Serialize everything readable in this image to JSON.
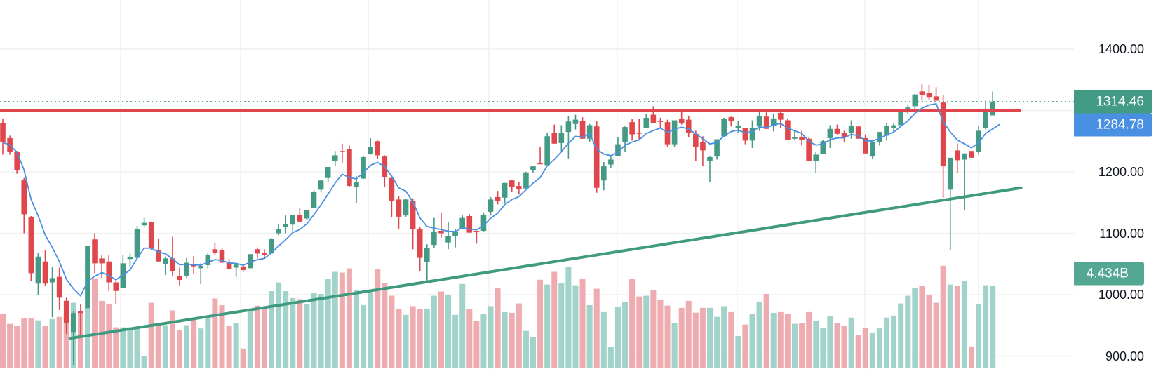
{
  "chart_data": {
    "type": "candlestick",
    "title": "",
    "price_axis": {
      "ylim": [
        880,
        1440
      ],
      "gridlines": [
        900,
        1000,
        1100,
        1200,
        1300,
        1400
      ],
      "tick_labels": [
        {
          "value": 1400,
          "label": "1400.00"
        },
        {
          "value": 1200,
          "label": "1200.00"
        },
        {
          "value": 1100,
          "label": "1100.00"
        },
        {
          "value": 1000,
          "label": "1000.00"
        },
        {
          "value": 900,
          "label": "900.00"
        }
      ]
    },
    "columns": [
      "open",
      "high",
      "low",
      "close",
      "volume_billions"
    ],
    "candles": [
      [
        1280,
        1286,
        1228,
        1248,
        2.92
      ],
      [
        1255,
        1259,
        1228,
        1233,
        2.38
      ],
      [
        1232,
        1234,
        1197,
        1203,
        2.25
      ],
      [
        1187,
        1190,
        1100,
        1131,
        2.67
      ],
      [
        1126,
        1128,
        1022,
        1035,
        2.67
      ],
      [
        1018,
        1068,
        999,
        1062,
        2.57
      ],
      [
        1054,
        1072,
        1014,
        1018,
        2.25
      ],
      [
        1020,
        1045,
        963,
        1027,
        2.64
      ],
      [
        1029,
        1044,
        975,
        995,
        2.76
      ],
      [
        990,
        995,
        936,
        954,
        2.93
      ],
      [
        939,
        973,
        885,
        970,
        3.53
      ],
      [
        973,
        985,
        933,
        970,
        3.02
      ],
      [
        978,
        1080,
        978,
        1080,
        3.25
      ],
      [
        1090,
        1100,
        1035,
        1051,
        4.86
      ],
      [
        1059,
        1065,
        1027,
        1051,
        3.63
      ],
      [
        1054,
        1065,
        1006,
        1020,
        3.44
      ],
      [
        1020,
        1022,
        984,
        1006,
        2.19
      ],
      [
        1011,
        1065,
        1011,
        1051,
        2.19
      ],
      [
        1058,
        1067,
        1046,
        1061,
        2.19
      ],
      [
        1060,
        1112,
        1058,
        1107,
        2.19
      ],
      [
        1113,
        1125,
        1111,
        1117,
        0.62
      ],
      [
        1118,
        1119,
        1072,
        1076,
        3.53
      ],
      [
        1072,
        1091,
        1054,
        1054,
        2.25
      ],
      [
        1050,
        1062,
        1032,
        1059,
        2.31
      ],
      [
        1059,
        1094,
        1031,
        1038,
        3.11
      ],
      [
        1030,
        1044,
        1014,
        1024,
        2.06
      ],
      [
        1031,
        1060,
        1027,
        1052,
        2.31
      ],
      [
        1048,
        1063,
        1034,
        1046,
        2.6
      ],
      [
        1043,
        1051,
        1017,
        1047,
        2.13
      ],
      [
        1048,
        1068,
        1043,
        1064,
        2.67
      ],
      [
        1074,
        1084,
        1065,
        1068,
        3.76
      ],
      [
        1073,
        1075,
        1052,
        1052,
        3.4
      ],
      [
        1052,
        1058,
        1042,
        1042,
        2.27
      ],
      [
        1044,
        1049,
        1029,
        1049,
        2.42
      ],
      [
        1046,
        1047,
        1037,
        1040,
        1.04
      ],
      [
        1043,
        1066,
        1043,
        1066,
        3.08
      ],
      [
        1074,
        1077,
        1059,
        1067,
        3.37
      ],
      [
        1068,
        1074,
        1058,
        1064,
        3.21
      ],
      [
        1067,
        1092,
        1067,
        1091,
        4.16
      ],
      [
        1100,
        1115,
        1097,
        1107,
        4.63
      ],
      [
        1110,
        1129,
        1100,
        1115,
        4.16
      ],
      [
        1114,
        1130,
        1103,
        1130,
        3.78
      ],
      [
        1130,
        1141,
        1119,
        1119,
        3.72
      ],
      [
        1124,
        1138,
        1122,
        1138,
        3.46
      ],
      [
        1141,
        1170,
        1141,
        1168,
        4.06
      ],
      [
        1171,
        1186,
        1168,
        1186,
        4.01
      ],
      [
        1190,
        1208,
        1184,
        1208,
        4.83
      ],
      [
        1218,
        1234,
        1210,
        1227,
        5.21
      ],
      [
        1234,
        1246,
        1214,
        1232,
        5.17
      ],
      [
        1237,
        1243,
        1175,
        1177,
        5.4
      ],
      [
        1176,
        1193,
        1149,
        1183,
        4.2
      ],
      [
        1189,
        1226,
        1189,
        1224,
        3.4
      ],
      [
        1229,
        1255,
        1228,
        1241,
        4.1
      ],
      [
        1250,
        1251,
        1221,
        1227,
        5.35
      ],
      [
        1225,
        1227,
        1175,
        1192,
        4.58
      ],
      [
        1190,
        1195,
        1126,
        1153,
        3.91
      ],
      [
        1155,
        1161,
        1107,
        1127,
        3.17
      ],
      [
        1129,
        1156,
        1127,
        1155,
        2.87
      ],
      [
        1153,
        1157,
        1074,
        1107,
        3.34
      ],
      [
        1107,
        1110,
        1038,
        1060,
        3.17
      ],
      [
        1053,
        1082,
        1022,
        1076,
        3.21
      ],
      [
        1081,
        1125,
        1076,
        1102,
        3.91
      ],
      [
        1104,
        1133,
        1093,
        1100,
        4.14
      ],
      [
        1085,
        1118,
        1074,
        1096,
        3.97
      ],
      [
        1095,
        1107,
        1077,
        1102,
        2.87
      ],
      [
        1107,
        1129,
        1107,
        1125,
        4.55
      ],
      [
        1128,
        1131,
        1101,
        1101,
        3.17
      ],
      [
        1104,
        1104,
        1083,
        1102,
        2.53
      ],
      [
        1104,
        1134,
        1103,
        1130,
        2.92
      ],
      [
        1135,
        1159,
        1129,
        1155,
        3.34
      ],
      [
        1159,
        1169,
        1147,
        1153,
        4.32
      ],
      [
        1158,
        1182,
        1149,
        1182,
        3.02
      ],
      [
        1186,
        1187,
        1168,
        1175,
        2.98
      ],
      [
        1177,
        1183,
        1163,
        1172,
        3.49
      ],
      [
        1173,
        1200,
        1173,
        1199,
        2.0
      ],
      [
        1203,
        1210,
        1199,
        1209,
        1.66
      ],
      [
        1214,
        1241,
        1213,
        1213,
        4.78
      ],
      [
        1211,
        1264,
        1211,
        1258,
        4.52
      ],
      [
        1264,
        1277,
        1246,
        1246,
        5.21
      ],
      [
        1247,
        1276,
        1233,
        1264,
        4.58
      ],
      [
        1265,
        1291,
        1222,
        1282,
        5.5
      ],
      [
        1278,
        1293,
        1269,
        1285,
        4.48
      ],
      [
        1283,
        1289,
        1254,
        1254,
        4.83
      ],
      [
        1254,
        1278,
        1248,
        1276,
        3.4
      ],
      [
        1274,
        1283,
        1166,
        1174,
        4.29
      ],
      [
        1186,
        1216,
        1170,
        1209,
        3.02
      ],
      [
        1212,
        1226,
        1207,
        1220,
        1.11
      ],
      [
        1226,
        1257,
        1226,
        1245,
        3.3
      ],
      [
        1248,
        1274,
        1233,
        1273,
        3.56
      ],
      [
        1281,
        1286,
        1251,
        1261,
        4.83
      ],
      [
        1264,
        1286,
        1251,
        1262,
        3.87
      ],
      [
        1271,
        1294,
        1271,
        1288,
        3.91
      ],
      [
        1293,
        1307,
        1279,
        1279,
        4.2
      ],
      [
        1283,
        1288,
        1271,
        1282,
        3.68
      ],
      [
        1281,
        1285,
        1241,
        1245,
        3.37
      ],
      [
        1245,
        1284,
        1241,
        1284,
        2.44
      ],
      [
        1286,
        1298,
        1277,
        1280,
        3.25
      ],
      [
        1285,
        1291,
        1256,
        1264,
        3.63
      ],
      [
        1262,
        1267,
        1218,
        1241,
        2.99
      ],
      [
        1248,
        1258,
        1209,
        1235,
        3.25
      ],
      [
        1218,
        1225,
        1184,
        1224,
        3.25
      ],
      [
        1225,
        1253,
        1220,
        1253,
        2.76
      ],
      [
        1258,
        1288,
        1256,
        1286,
        3.34
      ],
      [
        1289,
        1290,
        1274,
        1283,
        3.02
      ],
      [
        1271,
        1283,
        1264,
        1275,
        1.72
      ],
      [
        1271,
        1272,
        1245,
        1251,
        2.34
      ],
      [
        1251,
        1284,
        1239,
        1272,
        2.92
      ],
      [
        1274,
        1300,
        1267,
        1291,
        3.59
      ],
      [
        1290,
        1298,
        1270,
        1270,
        4.01
      ],
      [
        1275,
        1295,
        1266,
        1287,
        2.98
      ],
      [
        1296,
        1298,
        1272,
        1285,
        3.02
      ],
      [
        1284,
        1287,
        1252,
        1252,
        2.94
      ],
      [
        1254,
        1267,
        1252,
        1256,
        2.38
      ],
      [
        1256,
        1267,
        1243,
        1252,
        2.42
      ],
      [
        1254,
        1256,
        1218,
        1218,
        3.02
      ],
      [
        1218,
        1233,
        1198,
        1228,
        2.53
      ],
      [
        1229,
        1252,
        1229,
        1250,
        2.15
      ],
      [
        1255,
        1276,
        1239,
        1270,
        2.8
      ],
      [
        1270,
        1277,
        1261,
        1262,
        2.44
      ],
      [
        1264,
        1267,
        1249,
        1256,
        2.25
      ],
      [
        1263,
        1284,
        1254,
        1275,
        2.72
      ],
      [
        1274,
        1274,
        1254,
        1254,
        1.77
      ],
      [
        1255,
        1261,
        1230,
        1230,
        2.15
      ],
      [
        1225,
        1249,
        1221,
        1249,
        1.91
      ],
      [
        1249,
        1265,
        1243,
        1265,
        2.15
      ],
      [
        1259,
        1279,
        1251,
        1275,
        2.72
      ],
      [
        1271,
        1280,
        1263,
        1276,
        2.83
      ],
      [
        1276,
        1298,
        1276,
        1298,
        3.49
      ],
      [
        1297,
        1309,
        1295,
        1305,
        3.91
      ],
      [
        1307,
        1327,
        1298,
        1326,
        4.35
      ],
      [
        1331,
        1343,
        1316,
        1325,
        4.44
      ],
      [
        1329,
        1342,
        1317,
        1322,
        3.97
      ],
      [
        1323,
        1338,
        1316,
        1316,
        3.53
      ],
      [
        1313,
        1325,
        1158,
        1209,
        5.54
      ],
      [
        1171,
        1223,
        1073,
        1223,
        4.52
      ],
      [
        1235,
        1246,
        1198,
        1219,
        4.44
      ],
      [
        1220,
        1230,
        1137,
        1230,
        4.7
      ],
      [
        1234,
        1234,
        1223,
        1223,
        1.15
      ],
      [
        1233,
        1275,
        1228,
        1267,
        3.44
      ],
      [
        1272,
        1316,
        1269,
        1301,
        4.48
      ],
      [
        1292,
        1331,
        1292,
        1314.46,
        4.434
      ]
    ],
    "annotations": {
      "resistance_line": {
        "price": 1300,
        "from_index": 0,
        "to_index": 144,
        "color": "#e0454b"
      },
      "support_trendline": {
        "from": {
          "index": 9.6,
          "price": 929
        },
        "to": {
          "index": 144,
          "price": 1174
        },
        "color": "#3f9a80"
      },
      "last_price_line": {
        "price": 1314.46,
        "color": "#439a85"
      }
    },
    "tags": {
      "last_price": "1314.46",
      "moving_average": "1284.78",
      "volume": "4.434B"
    },
    "colors": {
      "up": "#439a85",
      "down": "#e0474c",
      "up_volume": "#a1d3ca",
      "down_volume": "#eeabb0",
      "ma": "#4a90e2",
      "last_price_tag": "#439a85",
      "ma_tag": "#4a90e2",
      "volume_tag": "#53a793",
      "grid": "#f0f0f0"
    }
  }
}
